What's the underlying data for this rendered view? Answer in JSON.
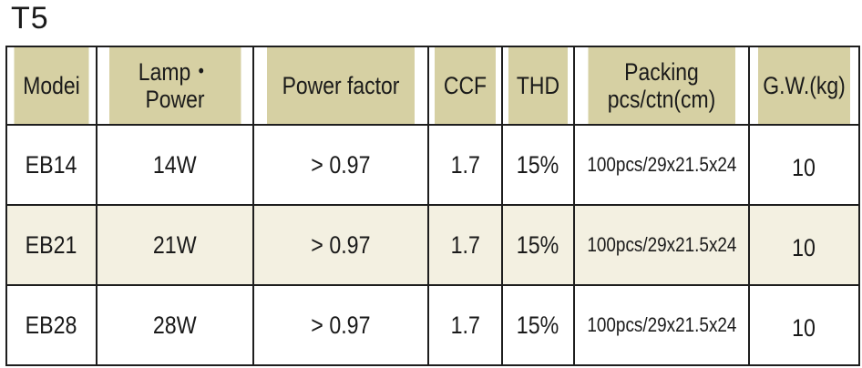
{
  "title": "T5",
  "colors": {
    "header_bg": "#d6d0a3",
    "row_shaded": "#f3f0e1",
    "row_plain": "#ffffff",
    "border": "#1e1e1e"
  },
  "headers": [
    {
      "line1": "Modei",
      "line2": ""
    },
    {
      "line1": "Lamp・Power",
      "line2": ""
    },
    {
      "line1": "Power  factor",
      "line2": ""
    },
    {
      "line1": "CCF",
      "line2": ""
    },
    {
      "line1": "THD",
      "line2": ""
    },
    {
      "line1": "Packing",
      "line2": "pcs/ctn(cm)"
    },
    {
      "line1": "G.W.(kg)",
      "line2": ""
    }
  ],
  "rows": [
    {
      "model": "EB14",
      "power": "14W",
      "pf": "> 0.97",
      "ccf": "1.7",
      "thd": "15%",
      "packing": "100pcs/29x21.5x24",
      "gw": "10"
    },
    {
      "model": "EB21",
      "power": "21W",
      "pf": "> 0.97",
      "ccf": "1.7",
      "thd": "15%",
      "packing": "100pcs/29x21.5x24",
      "gw": "10"
    },
    {
      "model": "EB28",
      "power": "28W",
      "pf": "> 0.97",
      "ccf": "1.7",
      "thd": "15%",
      "packing": "100pcs/29x21.5x24",
      "gw": "10"
    }
  ]
}
